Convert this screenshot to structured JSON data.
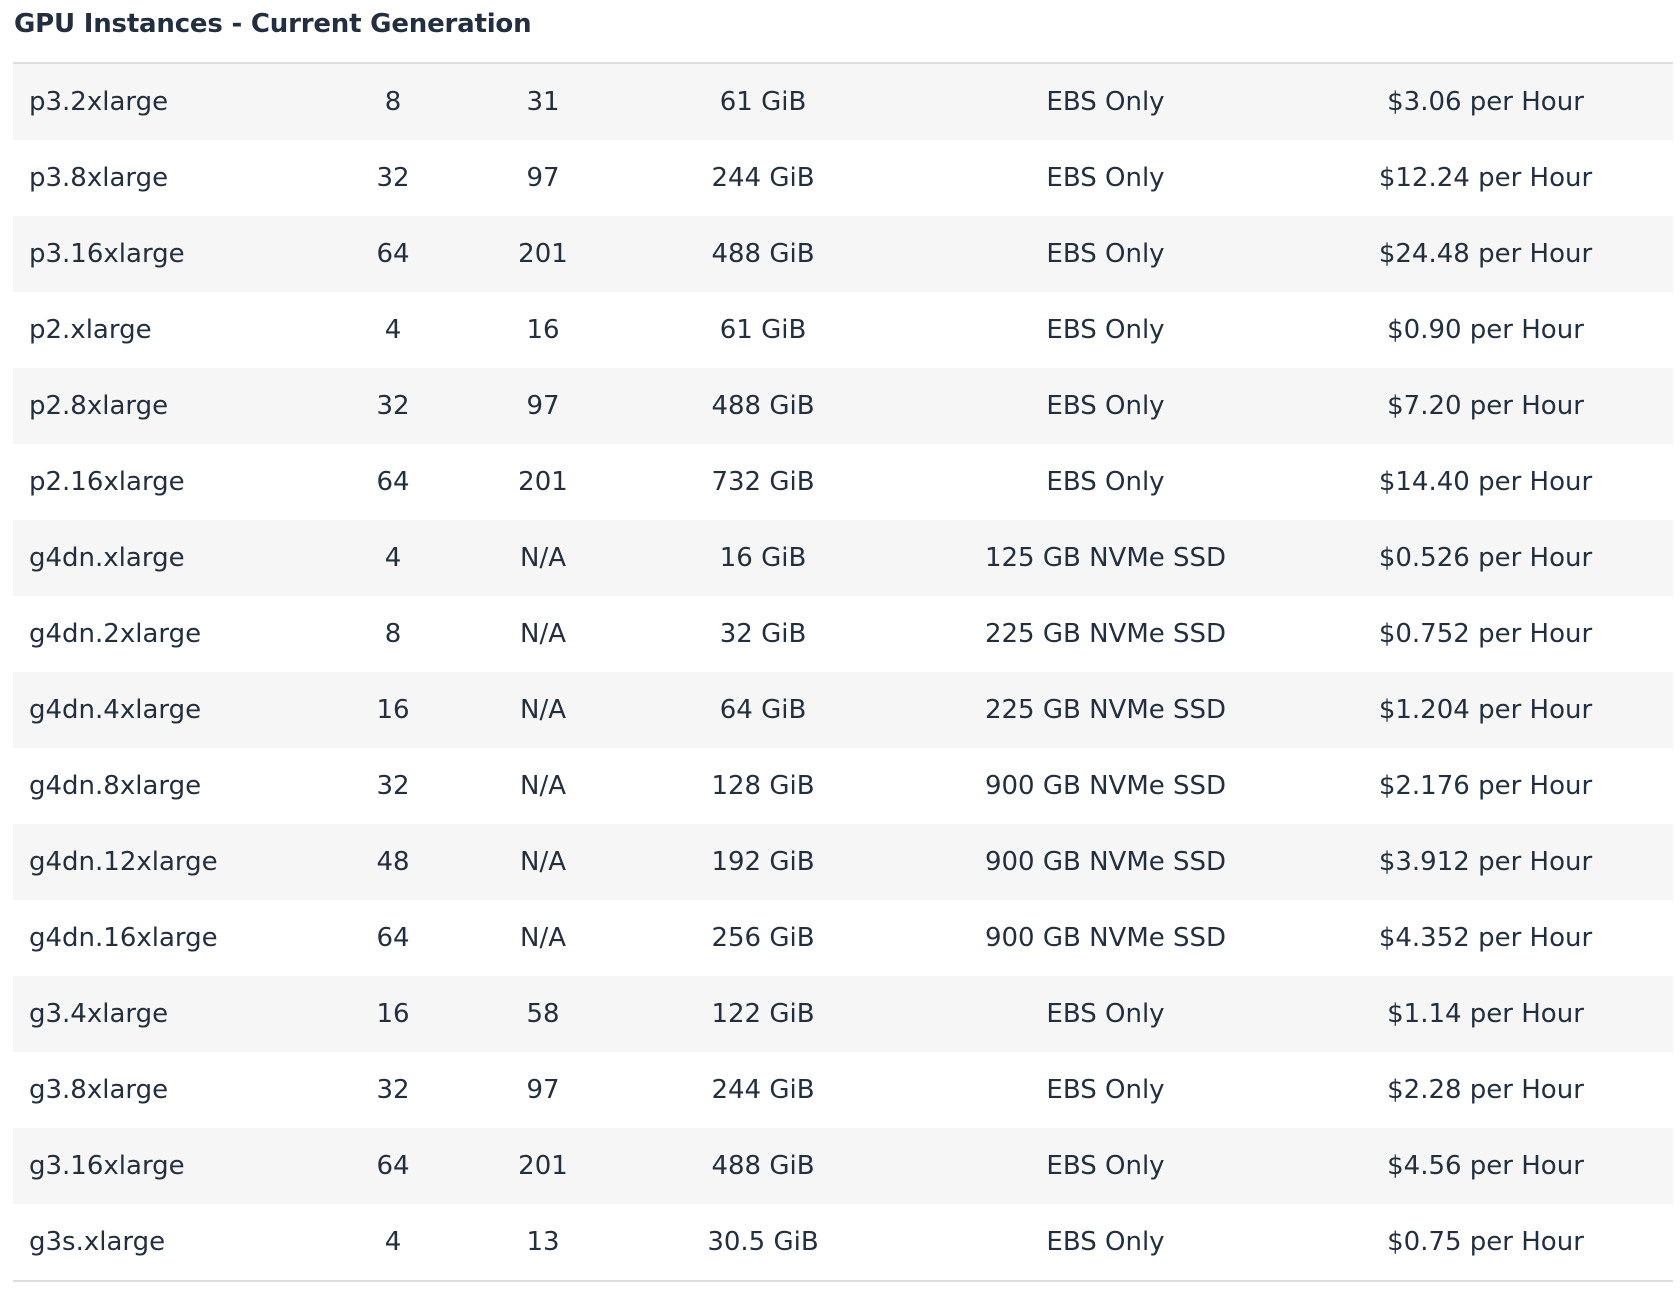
{
  "section": {
    "title": "GPU Instances - Current Generation"
  },
  "table": {
    "rows": [
      [
        "p3.2xlarge",
        "8",
        "31",
        "61 GiB",
        "EBS Only",
        "$3.06 per Hour"
      ],
      [
        "p3.8xlarge",
        "32",
        "97",
        "244 GiB",
        "EBS Only",
        "$12.24 per Hour"
      ],
      [
        "p3.16xlarge",
        "64",
        "201",
        "488 GiB",
        "EBS Only",
        "$24.48 per Hour"
      ],
      [
        "p2.xlarge",
        "4",
        "16",
        "61 GiB",
        "EBS Only",
        "$0.90 per Hour"
      ],
      [
        "p2.8xlarge",
        "32",
        "97",
        "488 GiB",
        "EBS Only",
        "$7.20 per Hour"
      ],
      [
        "p2.16xlarge",
        "64",
        "201",
        "732 GiB",
        "EBS Only",
        "$14.40 per Hour"
      ],
      [
        "g4dn.xlarge",
        "4",
        "N/A",
        "16 GiB",
        "125 GB NVMe SSD",
        "$0.526 per Hour"
      ],
      [
        "g4dn.2xlarge",
        "8",
        "N/A",
        "32 GiB",
        "225 GB NVMe SSD",
        "$0.752 per Hour"
      ],
      [
        "g4dn.4xlarge",
        "16",
        "N/A",
        "64 GiB",
        "225 GB NVMe SSD",
        "$1.204 per Hour"
      ],
      [
        "g4dn.8xlarge",
        "32",
        "N/A",
        "128 GiB",
        "900 GB NVMe SSD",
        "$2.176 per Hour"
      ],
      [
        "g4dn.12xlarge",
        "48",
        "N/A",
        "192 GiB",
        "900 GB NVMe SSD",
        "$3.912 per Hour"
      ],
      [
        "g4dn.16xlarge",
        "64",
        "N/A",
        "256 GiB",
        "900 GB NVMe SSD",
        "$4.352 per Hour"
      ],
      [
        "g3.4xlarge",
        "16",
        "58",
        "122 GiB",
        "EBS Only",
        "$1.14 per Hour"
      ],
      [
        "g3.8xlarge",
        "32",
        "97",
        "244 GiB",
        "EBS Only",
        "$2.28 per Hour"
      ],
      [
        "g3.16xlarge",
        "64",
        "201",
        "488 GiB",
        "EBS Only",
        "$4.56 per Hour"
      ],
      [
        "g3s.xlarge",
        "4",
        "13",
        "30.5 GiB",
        "EBS Only",
        "$0.75 per Hour"
      ]
    ]
  }
}
